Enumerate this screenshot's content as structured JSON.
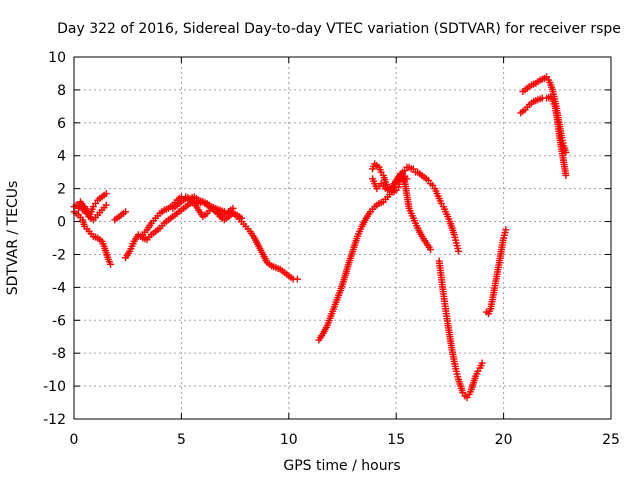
{
  "chart_data": {
    "type": "scatter",
    "title": "Day 322 of 2016, Sidereal Day-to-day VTEC variation (SDTVAR) for receiver rspe",
    "xlabel": "GPS time / hours",
    "ylabel": "SDTVAR / TECUs",
    "xlim": [
      0,
      25
    ],
    "ylim": [
      -12,
      10
    ],
    "xticks": [
      "0",
      "5",
      "10",
      "15",
      "20",
      "25"
    ],
    "yticks": [
      "-12",
      "-10",
      "-8",
      "-6",
      "-4",
      "-2",
      "0",
      "2",
      "4",
      "6",
      "8",
      "10"
    ],
    "grid": true,
    "marker": "plus",
    "color": "#ff0000",
    "series": [
      {
        "x": [
          0.0,
          0.2,
          0.4,
          0.5,
          0.7,
          0.9,
          1.1,
          1.3,
          1.4,
          1.5,
          1.6,
          1.7
        ],
        "y": [
          0.6,
          0.4,
          0.1,
          -0.3,
          -0.6,
          -0.9,
          -1.0,
          -1.2,
          -1.5,
          -1.9,
          -2.3,
          -2.6
        ]
      },
      {
        "x": [
          0.0,
          0.1,
          0.2,
          0.3,
          0.4,
          0.5,
          0.6,
          0.7,
          0.8,
          0.9,
          1.0,
          1.1,
          1.2,
          1.3,
          1.4,
          1.5
        ],
        "y": [
          0.9,
          1.0,
          0.8,
          1.1,
          0.7,
          0.9,
          0.5,
          0.3,
          0.6,
          0.9,
          1.1,
          1.3,
          1.4,
          1.5,
          1.6,
          1.7
        ]
      },
      {
        "x": [
          0.3,
          0.5,
          0.7,
          0.9,
          1.1,
          1.3,
          1.5
        ],
        "y": [
          1.2,
          0.8,
          0.3,
          0.1,
          0.4,
          0.7,
          1.0
        ]
      },
      {
        "x": [
          1.9,
          2.0,
          2.1,
          2.2,
          2.3,
          2.4
        ],
        "y": [
          0.1,
          0.2,
          0.3,
          0.4,
          0.5,
          0.6
        ]
      },
      {
        "x": [
          2.4,
          2.6,
          2.8,
          3.0,
          3.2,
          3.4,
          3.6,
          3.8,
          4.0,
          4.2,
          4.4,
          4.6,
          4.8,
          5.0,
          5.2,
          5.4,
          5.6,
          5.8,
          6.0,
          6.2,
          6.4,
          6.6,
          6.8,
          7.0,
          7.2,
          7.4,
          7.6,
          7.8,
          8.0,
          8.2,
          8.4,
          8.6,
          8.8,
          9.0,
          9.2,
          9.4,
          9.6,
          9.8,
          10.0,
          10.2,
          10.4
        ],
        "y": [
          -2.2,
          -1.8,
          -1.2,
          -0.8,
          -1.0,
          -1.1,
          -0.8,
          -0.6,
          -0.4,
          -0.1,
          0.1,
          0.3,
          0.5,
          0.7,
          0.9,
          1.1,
          1.2,
          1.1,
          1.2,
          1.1,
          0.9,
          0.8,
          0.7,
          0.6,
          0.6,
          0.5,
          0.3,
          0.0,
          -0.3,
          -0.6,
          -1.0,
          -1.5,
          -2.0,
          -2.5,
          -2.7,
          -2.8,
          -2.9,
          -3.1,
          -3.3,
          -3.5,
          -3.5
        ]
      },
      {
        "x": [
          3.2,
          3.4,
          3.6,
          3.8,
          4.0,
          4.2,
          4.4,
          4.6,
          4.8,
          5.0,
          5.2,
          5.4,
          5.6,
          5.8,
          6.0,
          6.2,
          6.4,
          6.6,
          6.8,
          7.0,
          7.2,
          7.4
        ],
        "y": [
          -0.8,
          -0.5,
          -0.1,
          0.2,
          0.5,
          0.7,
          0.8,
          1.0,
          1.3,
          1.5,
          1.5,
          1.4,
          1.5,
          1.3,
          1.2,
          1.0,
          0.8,
          0.6,
          0.4,
          0.4,
          0.6,
          0.8
        ]
      },
      {
        "x": [
          4.6,
          4.8,
          5.0,
          5.2,
          5.4,
          5.6,
          5.8,
          6.0,
          6.2,
          6.4,
          6.6,
          6.8,
          7.0,
          7.2,
          7.4,
          7.6,
          7.8
        ],
        "y": [
          0.8,
          1.0,
          1.2,
          1.4,
          1.3,
          1.1,
          0.7,
          0.3,
          0.5,
          0.8,
          0.6,
          0.3,
          0.1,
          0.3,
          0.5,
          0.4,
          0.2
        ]
      },
      {
        "x": [
          11.4,
          11.6,
          11.8,
          12.0,
          12.2,
          12.4,
          12.6,
          12.8,
          13.0,
          13.2,
          13.4,
          13.6,
          13.8,
          14.0,
          14.2,
          14.4,
          14.6,
          14.8,
          15.0,
          15.2,
          15.4,
          15.5,
          15.6,
          15.8,
          16.0,
          16.2,
          16.4,
          16.6
        ],
        "y": [
          -7.2,
          -6.8,
          -6.3,
          -5.6,
          -4.9,
          -4.2,
          -3.4,
          -2.5,
          -1.7,
          -0.9,
          -0.3,
          0.2,
          0.6,
          0.9,
          1.1,
          1.2,
          1.5,
          1.8,
          2.4,
          2.9,
          2.4,
          1.6,
          0.8,
          0.2,
          -0.4,
          -0.9,
          -1.3,
          -1.7
        ]
      },
      {
        "x": [
          13.9,
          14.0,
          14.1,
          14.2,
          14.3,
          14.4,
          14.5,
          14.6,
          14.7,
          14.8,
          14.9,
          15.0,
          15.1,
          15.2,
          15.3,
          15.4,
          15.5,
          15.6,
          15.7,
          15.8,
          15.9,
          16.0,
          16.1,
          16.2,
          16.3,
          16.4,
          16.5,
          16.6,
          16.7,
          16.8,
          16.9,
          17.0,
          17.1,
          17.2,
          17.3,
          17.4,
          17.5,
          17.6,
          17.7,
          17.8,
          17.9
        ],
        "y": [
          3.2,
          3.5,
          3.4,
          3.3,
          3.0,
          2.8,
          2.4,
          2.1,
          1.9,
          1.8,
          1.8,
          1.9,
          2.1,
          2.6,
          3.0,
          3.1,
          3.3,
          3.3,
          3.2,
          3.2,
          3.0,
          3.0,
          2.9,
          2.8,
          2.7,
          2.6,
          2.5,
          2.3,
          2.2,
          2.0,
          1.7,
          1.4,
          1.1,
          0.9,
          0.6,
          0.3,
          0.0,
          -0.4,
          -0.8,
          -1.3,
          -1.8
        ]
      },
      {
        "x": [
          13.9,
          14.1,
          14.3,
          14.5,
          14.7,
          14.9,
          15.1,
          15.3,
          15.5
        ],
        "y": [
          2.6,
          2.0,
          2.3,
          2.0,
          1.9,
          2.3,
          2.7,
          2.9,
          2.6
        ]
      },
      {
        "x": [
          17.0,
          17.1,
          17.2,
          17.3,
          17.4,
          17.5,
          17.6,
          17.7,
          17.8,
          17.9,
          18.0,
          18.1,
          18.2,
          18.3,
          18.4,
          18.5,
          18.6,
          18.7,
          18.8,
          18.9,
          19.0
        ],
        "y": [
          -2.4,
          -3.4,
          -4.4,
          -5.3,
          -6.2,
          -7.0,
          -7.8,
          -8.5,
          -9.1,
          -9.6,
          -10.0,
          -10.4,
          -10.6,
          -10.7,
          -10.5,
          -10.2,
          -9.8,
          -9.4,
          -9.1,
          -8.9,
          -8.6
        ]
      },
      {
        "x": [
          19.2,
          19.3,
          19.4,
          19.5,
          19.6,
          19.7,
          19.8,
          19.9,
          20.0,
          20.1
        ],
        "y": [
          -5.5,
          -5.6,
          -5.3,
          -4.6,
          -3.9,
          -3.2,
          -2.5,
          -1.7,
          -1.0,
          -0.5
        ]
      },
      {
        "x": [
          20.8,
          21.0,
          21.2,
          21.4,
          21.6,
          21.8,
          22.0,
          22.2,
          22.4,
          22.5,
          22.6,
          22.7,
          22.8,
          22.9
        ],
        "y": [
          6.6,
          6.8,
          7.1,
          7.3,
          7.4,
          7.5,
          7.5,
          7.6,
          7.0,
          6.2,
          5.2,
          4.4,
          3.6,
          2.8
        ]
      },
      {
        "x": [
          20.9,
          21.1,
          21.3,
          21.5,
          21.7,
          21.9,
          22.0,
          22.1,
          22.2,
          22.3,
          22.4,
          22.5,
          22.6,
          22.7,
          22.8,
          22.9
        ],
        "y": [
          7.9,
          8.1,
          8.3,
          8.4,
          8.6,
          8.7,
          8.8,
          8.6,
          8.3,
          7.9,
          7.3,
          6.6,
          5.9,
          5.1,
          4.6,
          4.2
        ]
      }
    ]
  }
}
